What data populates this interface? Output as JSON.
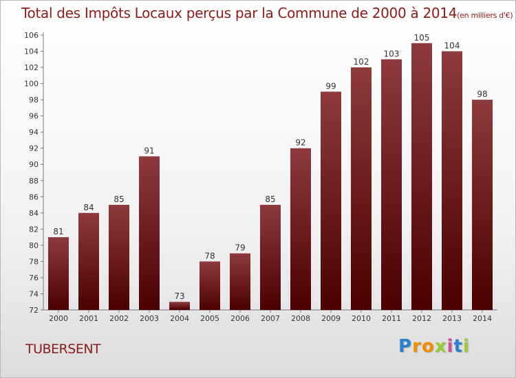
{
  "title": "Total des Impôts Locaux perçus par la Commune de 2000 à 2014",
  "title_unit": "(en milliers d'€)",
  "commune": "TUBERSENT",
  "logo": {
    "letters": [
      "P",
      "r",
      "o",
      "x",
      "i",
      "t",
      "i"
    ],
    "colors": [
      "#2b7fd0",
      "#f28c00",
      "#f28c00",
      "#9acd32",
      "#d64b9a",
      "#2b7fd0",
      "#9acd32"
    ]
  },
  "colors": {
    "bar_top": "#8e3a3e",
    "bar_bottom": "#4a0000",
    "title": "#8b1a1a"
  },
  "chart_data": {
    "type": "bar",
    "categories": [
      "2000",
      "2001",
      "2002",
      "2003",
      "2004",
      "2005",
      "2006",
      "2007",
      "2008",
      "2009",
      "2010",
      "2011",
      "2012",
      "2013",
      "2014"
    ],
    "values": [
      81,
      84,
      85,
      91,
      73,
      78,
      79,
      85,
      92,
      99,
      102,
      103,
      105,
      104,
      98
    ],
    "ylim": [
      72,
      106
    ],
    "yticks": [
      72,
      74,
      76,
      78,
      80,
      82,
      84,
      86,
      88,
      90,
      92,
      94,
      96,
      98,
      100,
      102,
      104,
      106
    ],
    "grid": false
  }
}
